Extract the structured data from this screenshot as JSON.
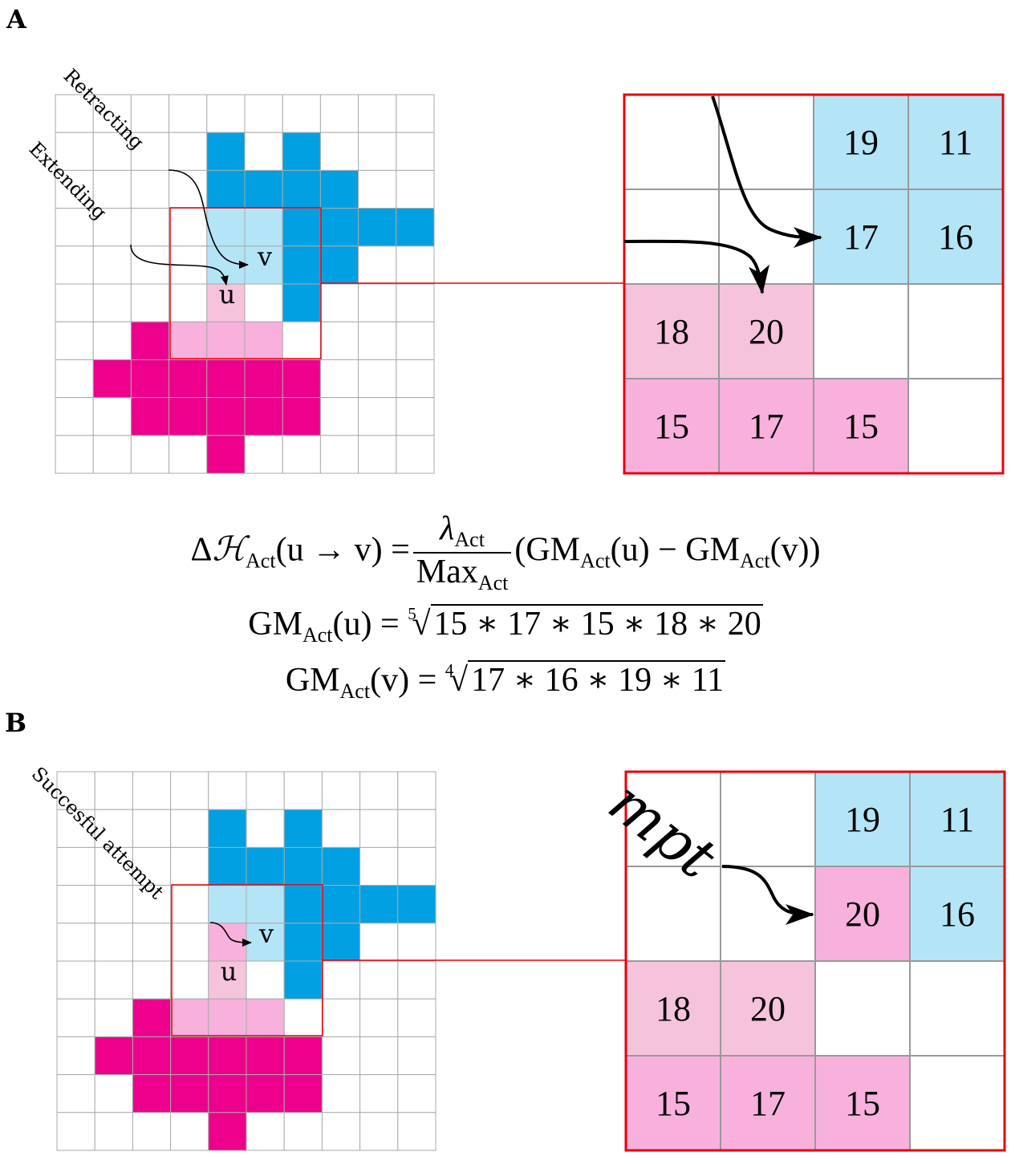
{
  "panels": [
    {
      "letter": "A",
      "labels": {
        "u": "u",
        "v": "v"
      },
      "arrows": [
        {
          "text": "Retracting"
        },
        {
          "text": "Extending"
        }
      ],
      "zoom": {
        "cells": [
          "",
          "",
          "19",
          "11",
          "",
          "",
          "17",
          "16",
          "18",
          "20",
          "",
          "",
          "15",
          "17",
          "15",
          ""
        ],
        "colors": [
          "w",
          "w",
          "lb",
          "lb",
          "w",
          "w",
          "lb",
          "lb",
          "lp",
          "lp",
          "w",
          "w",
          "pk",
          "pk",
          "pk",
          "w"
        ]
      }
    },
    {
      "letter": "B",
      "labels": {
        "u": "u",
        "v": "v"
      },
      "arrows": [
        {
          "text": "Succesful attempt"
        }
      ],
      "zoom": {
        "cells": [
          "",
          "",
          "19",
          "11",
          "",
          "",
          "20",
          "16",
          "18",
          "20",
          "",
          "",
          "15",
          "17",
          "15",
          ""
        ],
        "colors": [
          "w",
          "w",
          "lb",
          "lb",
          "w",
          "w",
          "pk",
          "lb",
          "lp",
          "lp",
          "w",
          "w",
          "pk",
          "pk",
          "pk",
          "w"
        ],
        "overlay_text": "mpt"
      }
    }
  ],
  "grid_a": [
    "..........",
    "....B.B...",
    "....BBBB..",
    "....LLBBBB",
    "....LLBB..",
    "....U.B...",
    "..MQQQ....",
    ".MMMMMM...",
    "..MMMMM...",
    "....M....."
  ],
  "grid_b": [
    "..........",
    "....B.B...",
    "....BBBB..",
    "....LLBBBB",
    "....PLBB..",
    "....U.B...",
    "..MQQQ....",
    ".MMMMMM...",
    "..MMMMM...",
    "....M....."
  ],
  "colors": {
    "deep_blue": "#00a0e3",
    "light_blue": "#b3e5f7",
    "magenta": "#ec008c",
    "pink": "#f7b1dc",
    "light_pink": "#f6c3dc",
    "grid_line": "#aaaaaa",
    "highlight": "#e8000b"
  },
  "equations": {
    "line1": {
      "lhs_delta": "Δ",
      "lhs_h": "ℋ",
      "lhs_sub": "Act",
      "lhs_arg": "(u → v) =",
      "frac_num": "λ",
      "frac_num_sub": "Act",
      "frac_den": "Max",
      "frac_den_sub": "Act",
      "rhs": "(GM",
      "rhs_sub1": "Act",
      "rhs_mid": "(u) − GM",
      "rhs_sub2": "Act",
      "rhs_end": "(v))"
    },
    "line2": {
      "lhs": "GM",
      "lhs_sub": "Act",
      "lhs_arg": "(u) =",
      "root_index": "5",
      "radicand": "15 ∗ 17 ∗ 15 ∗ 18 ∗ 20"
    },
    "line3": {
      "lhs": "GM",
      "lhs_sub": "Act",
      "lhs_arg": "(v) =",
      "root_index": "4",
      "radicand": "17 ∗ 16 ∗ 19 ∗ 11"
    }
  }
}
